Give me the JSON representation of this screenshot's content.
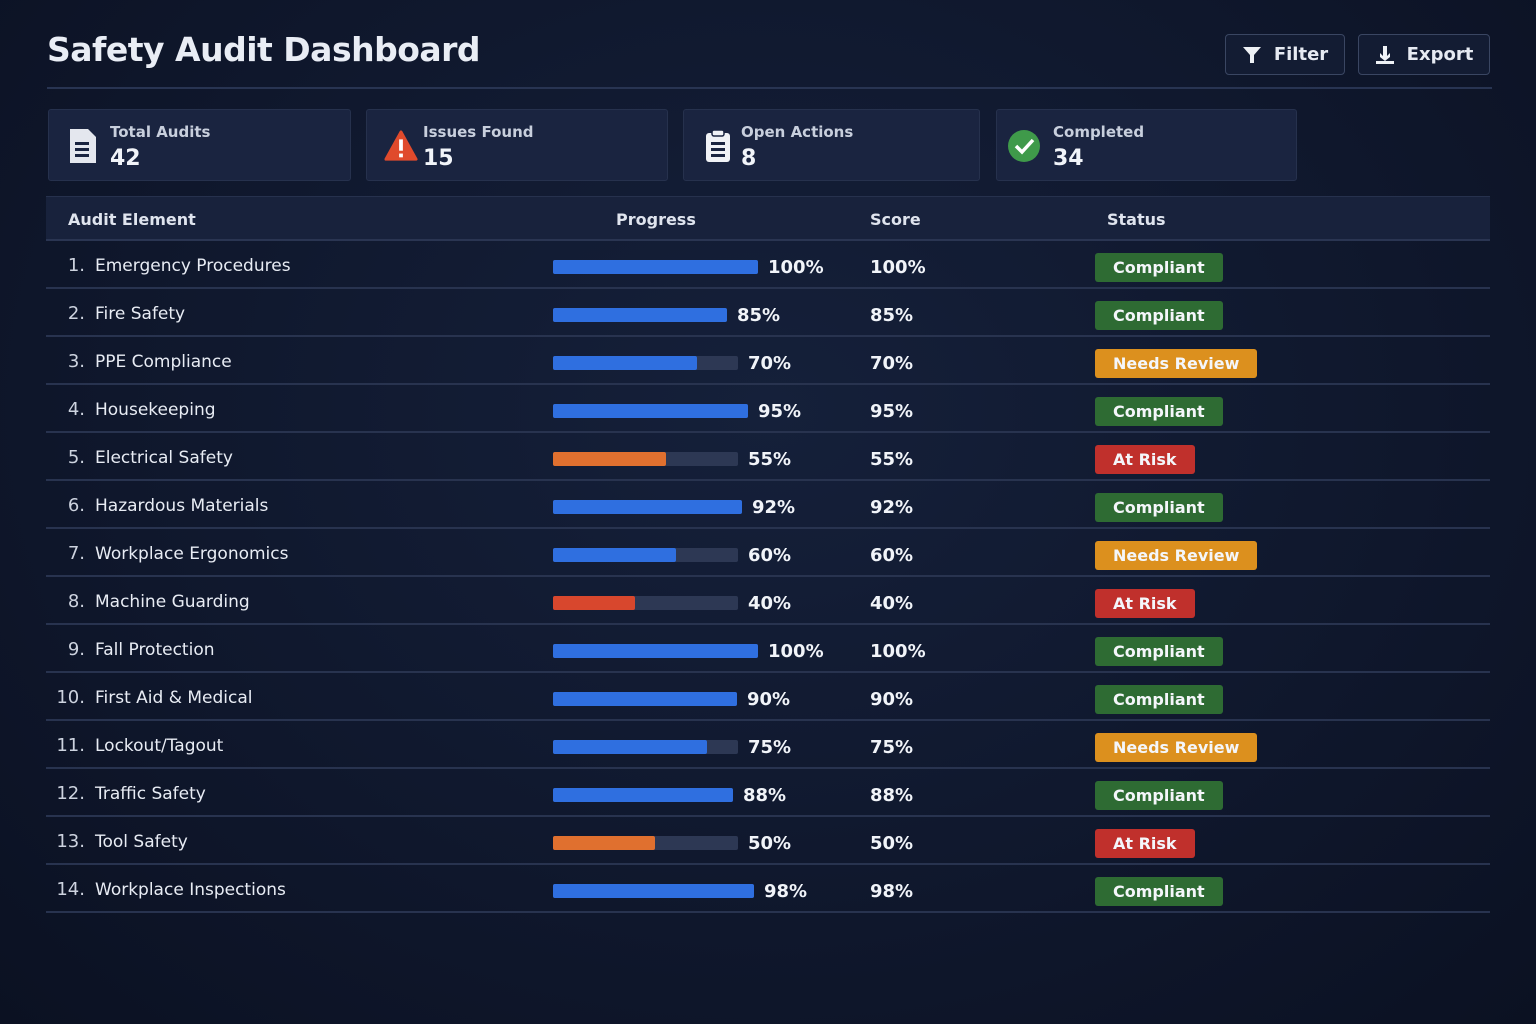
{
  "header": {
    "title": "Safety Audit Dashboard",
    "filter_label": "Filter",
    "export_label": "Export"
  },
  "cards": [
    {
      "label": "Total Audits",
      "value": "42",
      "icon": "document-icon"
    },
    {
      "label": "Issues Found",
      "value": "15",
      "icon": "warning-icon"
    },
    {
      "label": "Open Actions",
      "value": "8",
      "icon": "clipboard-icon"
    },
    {
      "label": "Completed",
      "value": "34",
      "icon": "check-circle-icon"
    }
  ],
  "table": {
    "columns": [
      "Audit Element",
      "Progress",
      "Score",
      "Status"
    ],
    "rows": [
      {
        "num": "1.",
        "name": "Emergency Procedures",
        "progress": 100,
        "score": "100%",
        "status": "Compliant"
      },
      {
        "num": "2.",
        "name": "Fire Safety",
        "progress": 85,
        "score": "85%",
        "status": "Compliant"
      },
      {
        "num": "3.",
        "name": "PPE Compliance",
        "progress": 70,
        "score": "70%",
        "status": "Needs Review"
      },
      {
        "num": "4.",
        "name": "Housekeeping",
        "progress": 95,
        "score": "95%",
        "status": "Compliant"
      },
      {
        "num": "5.",
        "name": "Electrical Safety",
        "progress": 55,
        "score": "55%",
        "status": "At Risk"
      },
      {
        "num": "6.",
        "name": "Hazardous Materials",
        "progress": 92,
        "score": "92%",
        "status": "Compliant"
      },
      {
        "num": "7.",
        "name": "Workplace Ergonomics",
        "progress": 60,
        "score": "60%",
        "status": "Needs Review"
      },
      {
        "num": "8.",
        "name": "Machine Guarding",
        "progress": 40,
        "score": "40%",
        "status": "At Risk"
      },
      {
        "num": "9.",
        "name": "Fall Protection",
        "progress": 100,
        "score": "100%",
        "status": "Compliant"
      },
      {
        "num": "10.",
        "name": "First Aid & Medical",
        "progress": 90,
        "score": "90%",
        "status": "Compliant"
      },
      {
        "num": "11.",
        "name": "Lockout/Tagout",
        "progress": 75,
        "score": "75%",
        "status": "Needs Review"
      },
      {
        "num": "12.",
        "name": "Traffic Safety",
        "progress": 88,
        "score": "88%",
        "status": "Compliant"
      },
      {
        "num": "13.",
        "name": "Tool Safety",
        "progress": 50,
        "score": "50%",
        "status": "At Risk"
      },
      {
        "num": "14.",
        "name": "Workplace Inspections",
        "progress": 98,
        "score": "98%",
        "status": "Compliant"
      }
    ]
  },
  "colors": {
    "progress_ok": "#2f6fe0",
    "progress_risk": "#e0702f",
    "progress_critical": "#d8472d",
    "compliant": "#2e6b33",
    "needs_review": "#dc901e",
    "at_risk": "#c0302c"
  }
}
